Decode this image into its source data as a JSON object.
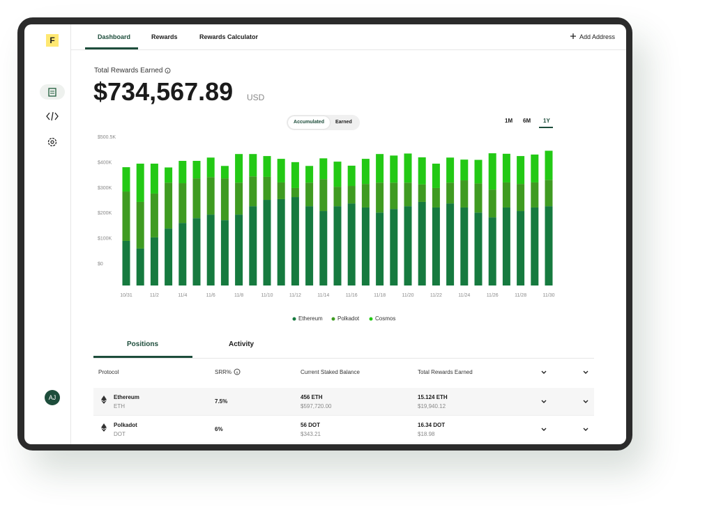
{
  "nav": {
    "logo": "F",
    "avatar": "AJ"
  },
  "tabs": [
    "Dashboard",
    "Rewards",
    "Rewards Calculator"
  ],
  "add_address": "Add Address",
  "summary": {
    "label": "Total Rewards Earned",
    "amount": "$734,567.89",
    "currency": "USD"
  },
  "chart_toggle": [
    "Accumulated",
    "Earned"
  ],
  "ranges": [
    "1M",
    "6M",
    "1Y"
  ],
  "chart_data": {
    "type": "bar",
    "stacked": true,
    "categories": [
      "10/31",
      null,
      "11/2",
      null,
      "11/4",
      null,
      "11/6",
      null,
      "11/8",
      null,
      "11/10",
      null,
      "11/12",
      null,
      "11/14",
      null,
      "11/16",
      null,
      "11/18",
      null,
      "11/20",
      null,
      "11/22",
      null,
      "11/24",
      null,
      "11/26",
      null,
      "11/28",
      null,
      "11/30"
    ],
    "series": [
      {
        "name": "Ethereum",
        "color": "#167a3f",
        "values": [
          176,
          146,
          190,
          225,
          247,
          266,
          280,
          258,
          280,
          313,
          338,
          341,
          349,
          313,
          294,
          313,
          324,
          308,
          288,
          302,
          313,
          330,
          308,
          324,
          308,
          288,
          269,
          308,
          294,
          308,
          313
        ]
      },
      {
        "name": "Polkadot",
        "color": "#3f9b22",
        "values": [
          195,
          184,
          173,
          181,
          157,
          157,
          148,
          165,
          126,
          118,
          91,
          66,
          36,
          93,
          126,
          77,
          69,
          93,
          118,
          104,
          93,
          69,
          77,
          82,
          107,
          115,
          110,
          99,
          107,
          99,
          104
        ]
      },
      {
        "name": "Cosmos",
        "color": "#23c915",
        "values": [
          96,
          151,
          118,
          60,
          88,
          69,
          77,
          49,
          113,
          88,
          82,
          93,
          102,
          66,
          82,
          99,
          80,
          99,
          113,
          107,
          115,
          107,
          96,
          99,
          82,
          93,
          143,
          113,
          110,
          110,
          115
        ]
      }
    ],
    "ylim": [
      -85,
      500.5
    ],
    "yticks": [
      {
        "value": 500.5,
        "label": "$500.5K"
      },
      {
        "value": 400,
        "label": "$400K"
      },
      {
        "value": 300,
        "label": "$300K"
      },
      {
        "value": 200,
        "label": "$200K"
      },
      {
        "value": 100,
        "label": "$100K"
      },
      {
        "value": 0,
        "label": "$0"
      }
    ],
    "grid": false,
    "legend": "bottom"
  },
  "section_tabs": [
    "Positions",
    "Activity"
  ],
  "table": {
    "headers": [
      "Protocol",
      "SRR%",
      "Current Staked Balance",
      "Total Rewards Earned"
    ],
    "rows": [
      {
        "name": "Ethereum",
        "symbol": "ETH",
        "srr": "7.5%",
        "staked": "456 ETH",
        "staked_usd": "$597,720.00",
        "rewards": "15.124 ETH",
        "rewards_usd": "$19,940.12"
      },
      {
        "name": "Polkadot",
        "symbol": "DOT",
        "srr": "6%",
        "staked": "56 DOT",
        "staked_usd": "$343.21",
        "rewards": "16.34 DOT",
        "rewards_usd": "$18.98"
      }
    ]
  }
}
